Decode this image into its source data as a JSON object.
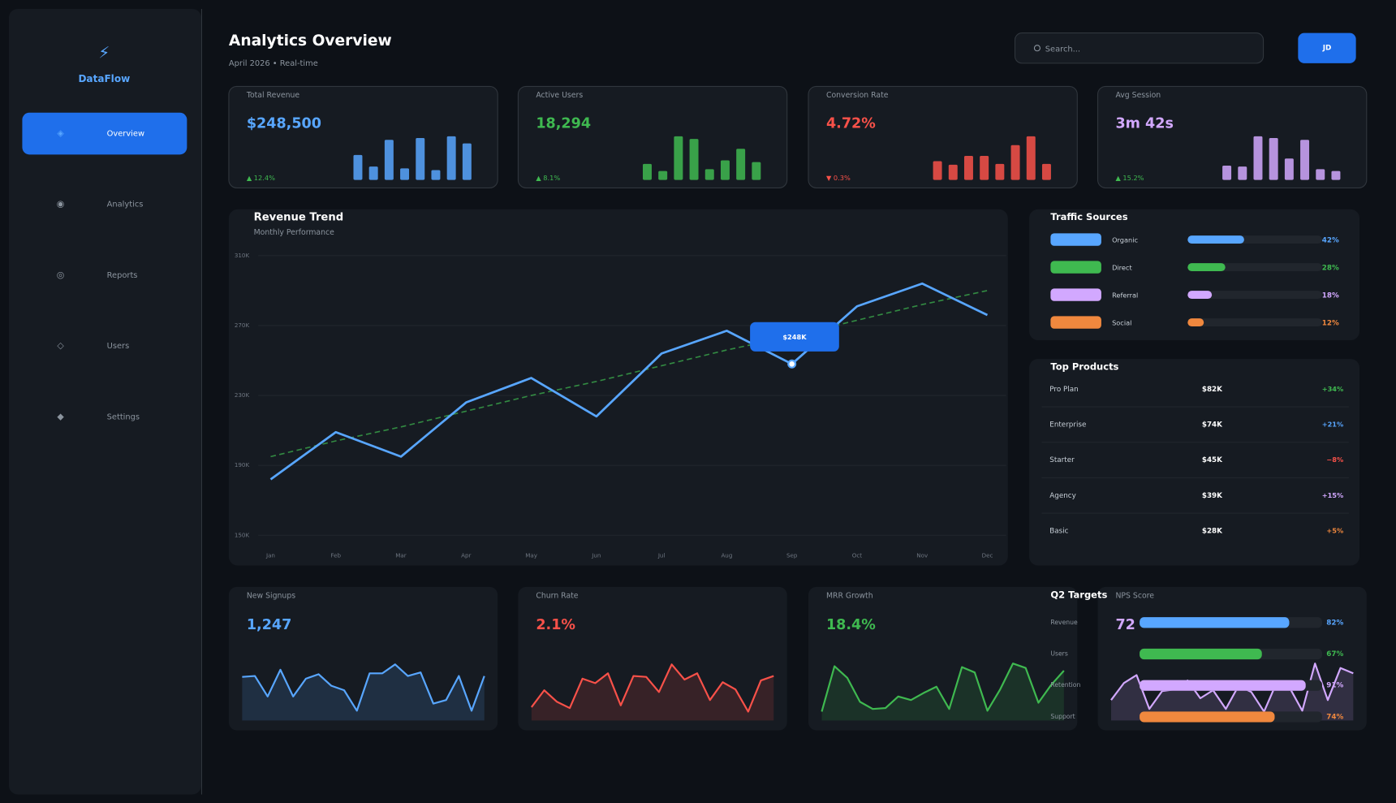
{
  "sidebar": {
    "logo": "⚡",
    "brand": "DataFlow",
    "nav": [
      {
        "icon": "◈",
        "label": "Overview",
        "active": true
      },
      {
        "icon": "◉",
        "label": "Analytics",
        "active": false
      },
      {
        "icon": "◎",
        "label": "Reports",
        "active": false
      },
      {
        "icon": "◇",
        "label": "Users",
        "active": false
      },
      {
        "icon": "◆",
        "label": "Settings",
        "active": false
      }
    ]
  },
  "header": {
    "title": "Analytics Overview",
    "subtitle": "April 2026  •  Real-time",
    "search_placeholder": "Search...",
    "avatar": "JD"
  },
  "kpis": [
    {
      "label": "Total Revenue",
      "value": "$248,500",
      "change": "▲ 12.4%",
      "change_color": "#3fb950",
      "color": "#58a6ff",
      "bars": [
        28,
        15,
        45,
        13,
        47,
        11,
        49,
        41
      ]
    },
    {
      "label": "Active Users",
      "value": "18,294",
      "change": "▲ 8.1%",
      "change_color": "#3fb950",
      "color": "#3fb950",
      "bars": [
        18,
        10,
        49,
        46,
        12,
        22,
        35,
        20
      ]
    },
    {
      "label": "Conversion Rate",
      "value": "4.72%",
      "change": "▼ 0.3%",
      "change_color": "#f85149",
      "color": "#f85149",
      "bars": [
        21,
        17,
        27,
        27,
        18,
        39,
        49,
        18
      ]
    },
    {
      "label": "Avg Session",
      "value": "3m 42s",
      "change": "▲ 15.2%",
      "change_color": "#3fb950",
      "color": "#d2a8ff",
      "bars": [
        16,
        15,
        49,
        47,
        24,
        45,
        12,
        10
      ]
    }
  ],
  "chart_data": {
    "type": "line",
    "title": "Revenue Trend",
    "subtitle": "Monthly Performance",
    "categories": [
      "Jan",
      "Feb",
      "Mar",
      "Apr",
      "May",
      "Jun",
      "Jul",
      "Aug",
      "Sep",
      "Oct",
      "Nov",
      "Dec"
    ],
    "series": [
      {
        "color": "#58a6ff",
        "values": [
          182,
          209,
          195,
          226,
          240,
          218,
          254,
          267,
          248,
          281,
          294,
          276
        ],
        "value_labels": [
          null,
          null,
          null,
          null,
          null,
          null,
          null,
          null,
          "$248K",
          null,
          null,
          null
        ]
      },
      {
        "color": "#3fb950",
        "dashed": true,
        "values": [
          195,
          204,
          212,
          221,
          230,
          238,
          247,
          256,
          264,
          273,
          282,
          290
        ]
      }
    ],
    "ylim": [
      150,
      310
    ],
    "yticks": [
      {
        "value": 150,
        "label": "150K"
      },
      {
        "value": 190,
        "label": "190K"
      },
      {
        "value": 230,
        "label": "230K"
      },
      {
        "value": 270,
        "label": "270K"
      },
      {
        "value": 310,
        "label": "310K"
      }
    ],
    "grid": true
  },
  "traffic_sources": {
    "title": "Traffic Sources",
    "items": [
      {
        "name": "Organic",
        "value": 42,
        "value_label": "42%",
        "color": "#58a6ff"
      },
      {
        "name": "Direct",
        "value": 28,
        "value_label": "28%",
        "color": "#3fb950"
      },
      {
        "name": "Referral",
        "value": 18,
        "value_label": "18%",
        "color": "#d2a8ff"
      },
      {
        "name": "Social",
        "value": 12,
        "value_label": "12%",
        "color": "#f0883e"
      }
    ]
  },
  "top_products": {
    "title": "Top Products",
    "rows": [
      {
        "name": "Pro Plan",
        "revenue": "$82K",
        "change": "+34%",
        "color": "#3fb950"
      },
      {
        "name": "Enterprise",
        "revenue": "$74K",
        "change": "+21%",
        "color": "#58a6ff"
      },
      {
        "name": "Starter",
        "revenue": "$45K",
        "change": "−8%",
        "color": "#f85149"
      },
      {
        "name": "Agency",
        "revenue": "$39K",
        "change": "+15%",
        "color": "#d2a8ff"
      },
      {
        "name": "Basic",
        "revenue": "$28K",
        "change": "+5%",
        "color": "#f0883e"
      }
    ]
  },
  "metrics": [
    {
      "label": "New Signups",
      "value": "1,247",
      "color": "#58a6ff",
      "sparkline": [
        49,
        50,
        27,
        57,
        27,
        47,
        52,
        39,
        34,
        11,
        53,
        53,
        63,
        50,
        54,
        19,
        23,
        50,
        11,
        50
      ]
    },
    {
      "label": "Churn Rate",
      "value": "2.1%",
      "color": "#f85149",
      "sparkline": [
        15,
        34,
        21,
        14,
        47,
        42,
        53,
        17,
        50,
        49,
        32,
        63,
        46,
        53,
        23,
        43,
        35,
        10,
        45,
        50
      ]
    },
    {
      "label": "MRR Growth",
      "value": "18.4%",
      "color": "#3fb950",
      "sparkline": [
        10,
        61,
        48,
        21,
        13,
        14,
        27,
        23,
        31,
        38,
        13,
        60,
        54,
        11,
        35,
        64,
        59,
        20,
        40,
        56
      ]
    },
    {
      "label": "NPS Score",
      "value": "72",
      "color": "#d2a8ff",
      "sparkline": [
        23,
        42,
        51,
        13,
        33,
        35,
        45,
        25,
        34,
        13,
        39,
        32,
        10,
        43,
        37,
        11,
        64,
        23,
        59,
        53
      ]
    }
  ],
  "q2_targets": {
    "title": "Q2 Targets",
    "items": [
      {
        "name": "Revenue",
        "value": 82,
        "value_label": "82%",
        "color": "#58a6ff"
      },
      {
        "name": "Users",
        "value": 67,
        "value_label": "67%",
        "color": "#3fb950"
      },
      {
        "name": "Retention",
        "value": 91,
        "value_label": "91%",
        "color": "#d2a8ff"
      },
      {
        "name": "Support",
        "value": 74,
        "value_label": "74%",
        "color": "#f0883e"
      }
    ]
  }
}
